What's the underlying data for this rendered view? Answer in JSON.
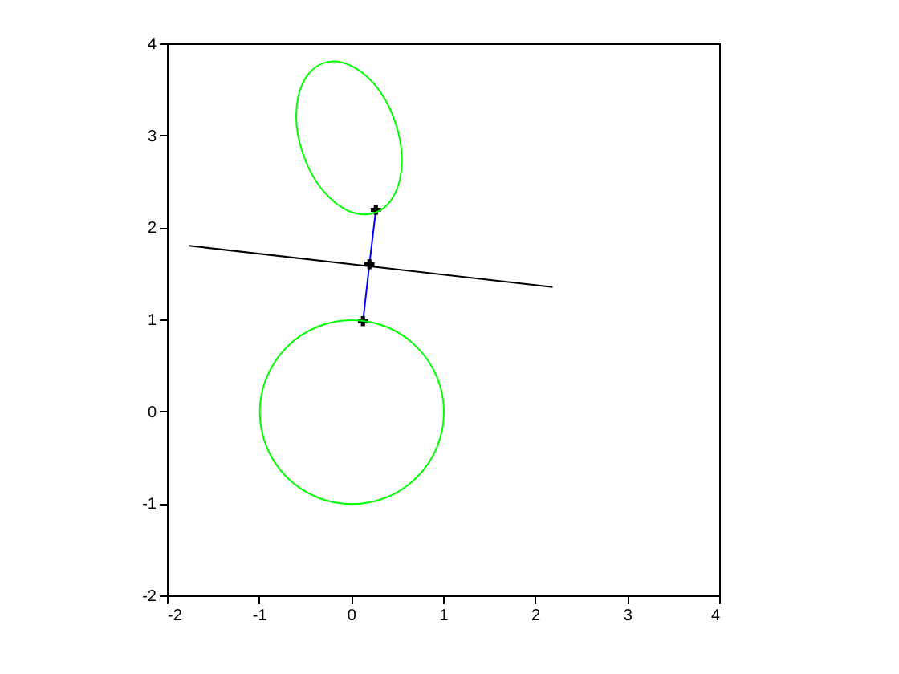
{
  "chart_data": {
    "type": "line",
    "xlim": [
      -2,
      4
    ],
    "ylim": [
      -2,
      4
    ],
    "xticks": [
      -2,
      -1,
      0,
      1,
      2,
      3,
      4
    ],
    "yticks": [
      -2,
      -1,
      0,
      1,
      2,
      3,
      4
    ],
    "grid": false,
    "series": [
      {
        "color": "#000000",
        "x": [
          -1.76,
          2.19
        ],
        "values": [
          1.8,
          1.35
        ]
      },
      {
        "color": "#0000ff",
        "marker": "cross",
        "x": [
          0.13,
          0.2,
          0.27
        ],
        "values": [
          0.98,
          1.6,
          2.19
        ]
      }
    ]
  }
}
